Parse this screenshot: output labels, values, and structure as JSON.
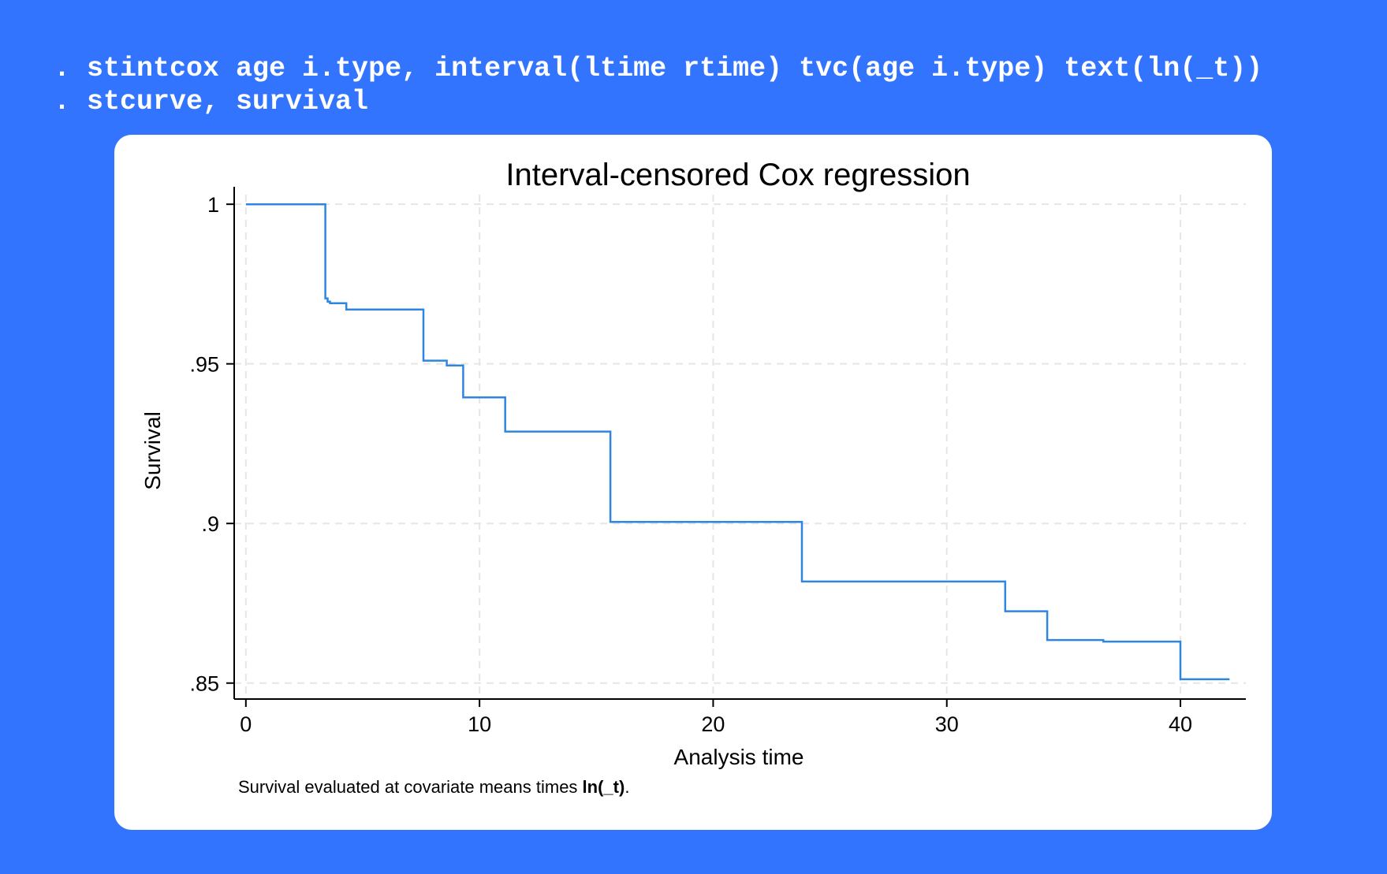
{
  "commands": [
    ". stintcox age i.type, interval(ltime rtime) tvc(age i.type) text(ln(_t))",
    ". stcurve, survival"
  ],
  "colors": {
    "background": "#3374ff",
    "card": "#ffffff",
    "series_line": "#2f86e0",
    "gridline": "#e6e6e6",
    "command_text": "#ffffff"
  },
  "note": {
    "prefix": "Survival evaluated at covariate means times ",
    "emphasis": "ln(_t)",
    "suffix": "."
  },
  "chart_data": {
    "type": "line",
    "step": true,
    "title": "Interval-censored Cox regression",
    "xlabel": "Analysis time",
    "ylabel": "Survival",
    "xlim": [
      -0.5,
      42.8
    ],
    "ylim": [
      0.845,
      1.003
    ],
    "xticks": [
      0,
      10,
      20,
      30,
      40
    ],
    "xtick_labels": [
      "0",
      "10",
      "20",
      "30",
      "40"
    ],
    "yticks": [
      1.0,
      0.95,
      0.9,
      0.85
    ],
    "ytick_labels": [
      "1",
      ".95",
      ".9",
      ".85"
    ],
    "grid": true,
    "series": [
      {
        "x": [
          0,
          3.4,
          3.5,
          3.6,
          4.3,
          7.6,
          8.6,
          9.3,
          11.1,
          12.5,
          15.6,
          23.8,
          32.5,
          34.3,
          36.7,
          40.0,
          42.1
        ],
        "y": [
          1.0,
          0.9705,
          0.9695,
          0.969,
          0.967,
          0.951,
          0.9495,
          0.9395,
          0.9288,
          0.9288,
          0.9005,
          0.8818,
          0.8725,
          0.8635,
          0.863,
          0.8512,
          0.8512
        ]
      }
    ]
  }
}
